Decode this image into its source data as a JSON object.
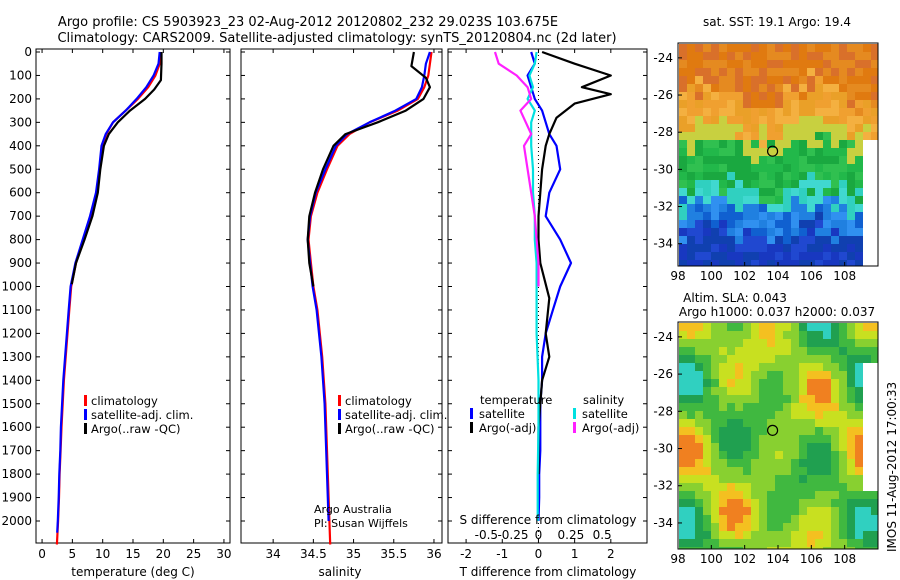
{
  "header": {
    "line1": "Argo profile: CS 5903923_23 02-Aug-2012 20120802_232 29.023S 103.675E",
    "line2": "Climatology: CARS2009. Satellite-adjusted climatology: synTS_20120804.nc (2d later)"
  },
  "colors": {
    "climatology": "#ff0000",
    "satellite": "#0000ff",
    "argo": "#000000",
    "sal_satellite": "#00e0e0",
    "sal_argo": "#ff20ff"
  },
  "chart_data": [
    {
      "type": "line",
      "xlabel": "temperature (deg C)",
      "ylim": [
        2100,
        0
      ],
      "xlim": [
        -1,
        31
      ],
      "xticks": [
        0,
        5,
        10,
        15,
        20,
        25,
        30
      ],
      "yticks": [
        0,
        100,
        200,
        300,
        400,
        500,
        600,
        700,
        800,
        900,
        1000,
        1100,
        1200,
        1300,
        1400,
        1500,
        1600,
        1700,
        1800,
        1900,
        2000
      ],
      "legend": [
        "climatology",
        "satellite-adj. clim.",
        "Argo(..raw -QC)"
      ],
      "series": [
        {
          "name": "climatology",
          "x": [
            19.6,
            19.4,
            18.7,
            17.5,
            15.8,
            13.8,
            11.7,
            10.6,
            9.9,
            9.5,
            9.0,
            8.0,
            6.8,
            5.6,
            4.8,
            4.5,
            4.2,
            3.9,
            3.6,
            3.4,
            3.2,
            3.05,
            2.9,
            2.8,
            2.65,
            2.55,
            2.45
          ],
          "y": [
            0,
            50,
            100,
            150,
            200,
            250,
            300,
            350,
            400,
            500,
            600,
            700,
            800,
            900,
            1000,
            1100,
            1200,
            1300,
            1400,
            1500,
            1600,
            1700,
            1800,
            1900,
            2000,
            2050,
            2100
          ]
        },
        {
          "name": "satellite-adj. clim.",
          "x": [
            19.4,
            19.2,
            18.4,
            17.2,
            15.6,
            13.8,
            11.7,
            10.5,
            9.8,
            9.4,
            8.9,
            7.9,
            6.7,
            5.5,
            4.7,
            4.4,
            4.1,
            3.8,
            3.5,
            3.3,
            3.1,
            3.0,
            2.85,
            2.75,
            2.6,
            2.5
          ],
          "y": [
            0,
            50,
            100,
            150,
            200,
            250,
            300,
            350,
            400,
            500,
            600,
            700,
            800,
            900,
            1000,
            1100,
            1200,
            1300,
            1400,
            1500,
            1600,
            1700,
            1800,
            1900,
            2000,
            2050
          ]
        },
        {
          "name": "Argo(..raw -QC)",
          "x": [
            19.7,
            19.7,
            19.6,
            18.5,
            17.0,
            14.5,
            12.5,
            11.0,
            10.2,
            9.6,
            9.2,
            8.3,
            7.0,
            5.6,
            4.9
          ],
          "y": [
            0,
            50,
            120,
            160,
            200,
            250,
            300,
            350,
            400,
            500,
            600,
            700,
            800,
            900,
            990
          ]
        }
      ]
    },
    {
      "type": "line",
      "xlabel": "salinity",
      "ylim": [
        2100,
        0
      ],
      "xlim": [
        33.6,
        36.1
      ],
      "xticks": [
        34,
        34.5,
        35,
        35.5,
        36
      ],
      "legend": [
        "climatology",
        "satellite-adj. clim.",
        "Argo(..raw -QC)"
      ],
      "annotation": [
        "Argo Australia",
        "PI: Susan Wijffels"
      ],
      "series": [
        {
          "name": "climatology",
          "x": [
            35.97,
            35.95,
            35.93,
            35.88,
            35.8,
            35.55,
            35.2,
            34.95,
            34.8,
            34.67,
            34.55,
            34.47,
            34.44,
            34.47,
            34.5,
            34.55,
            34.58,
            34.61,
            34.63,
            34.65,
            34.66,
            34.67,
            34.68,
            34.69,
            34.7,
            34.71
          ],
          "y": [
            0,
            50,
            100,
            150,
            200,
            250,
            300,
            350,
            400,
            500,
            600,
            700,
            800,
            900,
            1000,
            1100,
            1200,
            1300,
            1400,
            1500,
            1600,
            1700,
            1800,
            1900,
            2000,
            2100
          ]
        },
        {
          "name": "satellite-adj. clim.",
          "x": [
            35.95,
            35.9,
            35.88,
            35.85,
            35.78,
            35.52,
            35.2,
            34.92,
            34.78,
            34.65,
            34.53,
            34.46,
            34.43,
            34.46,
            34.49,
            34.54,
            34.57,
            34.6,
            34.62,
            34.64,
            34.65,
            34.66,
            34.67,
            34.68,
            34.69
          ],
          "y": [
            0,
            50,
            100,
            150,
            200,
            250,
            300,
            350,
            400,
            500,
            600,
            700,
            800,
            900,
            1000,
            1100,
            1200,
            1300,
            1400,
            1500,
            1600,
            1700,
            1800,
            1900,
            2000
          ]
        },
        {
          "name": "Argo(..raw -QC)",
          "x": [
            35.75,
            35.72,
            35.9,
            35.95,
            35.87,
            35.65,
            35.3,
            34.9,
            34.75,
            34.62,
            34.52,
            34.45,
            34.43,
            34.45,
            34.5
          ],
          "y": [
            0,
            60,
            110,
            150,
            200,
            250,
            300,
            350,
            400,
            500,
            600,
            700,
            800,
            900,
            1000
          ]
        }
      ]
    },
    {
      "type": "line",
      "xlabel": "T difference from climatology",
      "x2label": "S difference from climatology",
      "ylim": [
        2100,
        0
      ],
      "xlim": [
        -2.5,
        3
      ],
      "xticks": [
        -2,
        -1,
        0,
        1,
        2
      ],
      "x2ticks": [
        -0.5,
        -0.25,
        0,
        0.25,
        0.5
      ],
      "legend_groups": [
        {
          "title": "temperature",
          "items": [
            "satellite",
            "Argo(-adj)"
          ]
        },
        {
          "title": "salinity",
          "items": [
            "satellite",
            "Argo(-adj)"
          ]
        }
      ],
      "series": [
        {
          "name": "temperature satellite",
          "x": [
            -0.2,
            -0.1,
            -0.3,
            -0.2,
            -0.1,
            0.1,
            0.2,
            0.3,
            0.5,
            0.6,
            0.3,
            0.2,
            0.6,
            0.9,
            0.6,
            0.4,
            0.2,
            0.1,
            0.1,
            0.05,
            0.05,
            0.05,
            0.02,
            0.02,
            0.0
          ],
          "y": [
            0,
            50,
            100,
            150,
            200,
            250,
            300,
            350,
            400,
            500,
            600,
            700,
            800,
            900,
            1000,
            1100,
            1200,
            1300,
            1400,
            1500,
            1600,
            1700,
            1800,
            1900,
            2000
          ]
        },
        {
          "name": "temperature Argo(-adj)",
          "x": [
            0.1,
            1.0,
            2.0,
            1.2,
            2.0,
            1.0,
            0.5,
            0.3,
            0.2,
            0.1,
            0.05,
            0.0,
            0.0,
            0.05,
            0.3,
            0.2,
            0.3,
            0.1,
            0.05,
            0.0,
            0.0,
            0.0
          ],
          "y": [
            0,
            50,
            100,
            150,
            180,
            220,
            280,
            350,
            400,
            500,
            600,
            700,
            800,
            900,
            1050,
            1200,
            1300,
            1400,
            1500,
            1600,
            1700,
            1800
          ]
        },
        {
          "name": "salinity satellite",
          "x": [
            -0.05,
            -0.1,
            -0.25,
            -0.15,
            -0.3,
            -0.1,
            -0.2,
            -0.2,
            -0.15,
            -0.15,
            -0.1,
            -0.1,
            -0.05,
            -0.05,
            -0.05,
            0.0,
            0.0,
            -0.02,
            -0.02
          ],
          "y": [
            0,
            50,
            100,
            150,
            200,
            250,
            300,
            400,
            500,
            600,
            700,
            800,
            900,
            1000,
            1200,
            1400,
            1600,
            1800,
            2000
          ]
        },
        {
          "name": "salinity Argo(-adj)",
          "x": [
            -1.2,
            -1.1,
            -0.6,
            -0.3,
            -0.2,
            -0.5,
            -0.2,
            -0.4,
            -0.3,
            -0.2,
            -0.1,
            -0.05,
            0.0,
            0.0
          ],
          "y": [
            0,
            50,
            100,
            150,
            200,
            250,
            350,
            400,
            500,
            600,
            700,
            800,
            900,
            1000
          ]
        }
      ]
    },
    {
      "type": "heatmap",
      "title": "sat. SST: 19.1 Argo: 19.4",
      "xticks": [
        98,
        100,
        102,
        104,
        106,
        108
      ],
      "yticks": [
        -24,
        -26,
        -28,
        -30,
        -32,
        -34
      ],
      "marker": {
        "lon": 103.675,
        "lat": -29.023
      }
    },
    {
      "type": "heatmap",
      "title": "Altim. SLA: 0.043",
      "subtitle": "Argo h1000: 0.037 h2000: 0.037",
      "xticks": [
        98,
        100,
        102,
        104,
        106,
        108
      ],
      "yticks": [
        -24,
        -26,
        -28,
        -30,
        -32,
        -34
      ],
      "marker": {
        "lon": 103.675,
        "lat": -29.023
      },
      "side_label": "IMOS 11-Aug-2012 17:00:33"
    }
  ]
}
